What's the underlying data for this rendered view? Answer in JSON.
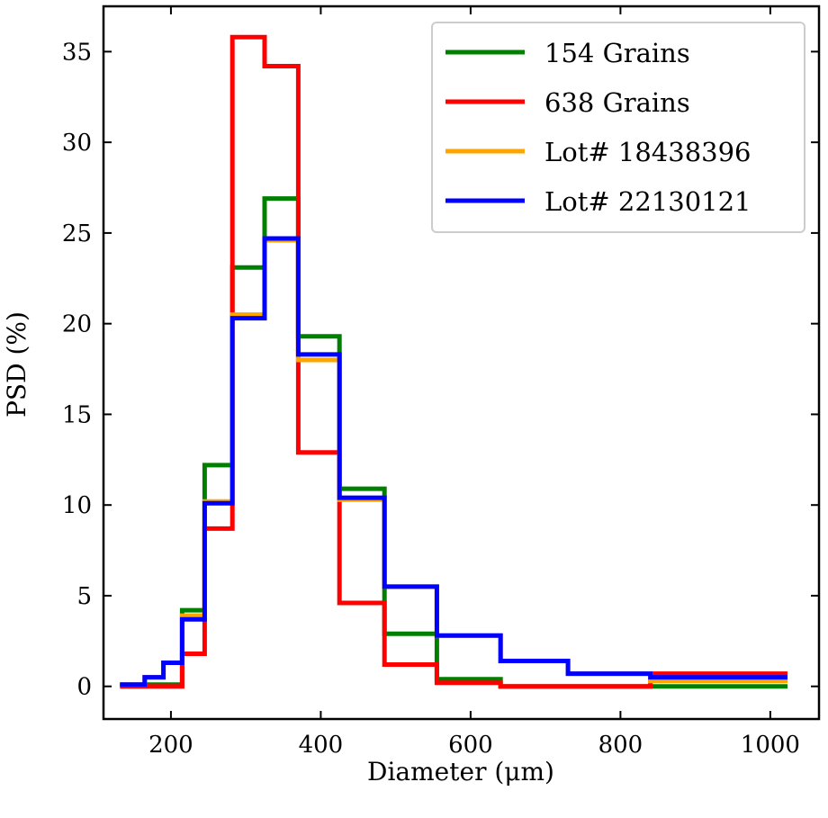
{
  "chart_data": {
    "type": "line",
    "title": "",
    "xlabel": "Diameter (μm)",
    "ylabel": "PSD (%)",
    "xlim": [
      110,
      1065
    ],
    "ylim": [
      -1.8,
      37.5
    ],
    "xticks": [
      200,
      400,
      600,
      800,
      1000
    ],
    "yticks": [
      0,
      5,
      10,
      15,
      20,
      25,
      30,
      35
    ],
    "grid": false,
    "legend_position": "top-right",
    "step": "post",
    "series": [
      {
        "name": "154 Grains",
        "color": "#008000",
        "x": [
          135,
          165,
          190,
          215,
          245,
          282,
          325,
          370,
          425,
          485,
          555,
          640,
          730,
          840,
          1020
        ],
        "y": [
          0.1,
          0.1,
          0.1,
          4.2,
          12.2,
          23.1,
          26.9,
          19.3,
          10.9,
          2.9,
          0.4,
          0.0,
          0.0,
          0.0,
          0.0
        ]
      },
      {
        "name": "638 Grains",
        "color": "#ff0000",
        "x": [
          135,
          165,
          190,
          215,
          245,
          282,
          325,
          370,
          425,
          485,
          555,
          640,
          730,
          840,
          1020
        ],
        "y": [
          0.0,
          0.0,
          0.0,
          1.8,
          8.7,
          35.8,
          34.2,
          12.9,
          4.6,
          1.2,
          0.2,
          0.0,
          0.0,
          0.7,
          0.7
        ]
      },
      {
        "name": "Lot# 18438396",
        "color": "#ffa500",
        "x": [
          135,
          165,
          190,
          215,
          245,
          282,
          325,
          370,
          425,
          485,
          555,
          640,
          730,
          840,
          1020
        ],
        "y": [
          0.1,
          0.5,
          1.3,
          3.9,
          10.2,
          20.5,
          24.6,
          18.0,
          10.3,
          5.5,
          2.8,
          1.4,
          0.7,
          0.3,
          0.3
        ]
      },
      {
        "name": "Lot# 22130121",
        "color": "#0000ff",
        "x": [
          135,
          165,
          190,
          215,
          245,
          282,
          325,
          370,
          425,
          485,
          555,
          640,
          730,
          840,
          1020
        ],
        "y": [
          0.1,
          0.5,
          1.3,
          3.7,
          10.1,
          20.3,
          24.7,
          18.3,
          10.4,
          5.5,
          2.8,
          1.4,
          0.7,
          0.5,
          0.5
        ]
      }
    ]
  }
}
